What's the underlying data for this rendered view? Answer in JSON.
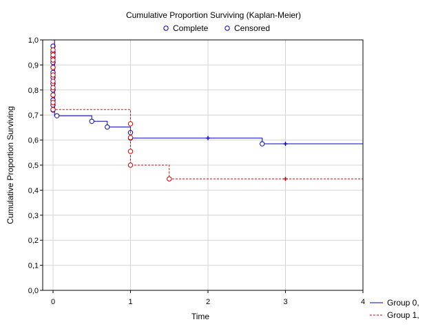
{
  "chart_data": {
    "type": "line",
    "title": "Cumulative Proportion Surviving (Kaplan-Meier)",
    "xlabel": "Time",
    "ylabel": "Cumulative Proportion Surviving",
    "xlim": [
      0,
      4
    ],
    "ylim": [
      0,
      1
    ],
    "x_ticks": [
      "0",
      "1",
      "2",
      "3",
      "4"
    ],
    "y_ticks": [
      "0,0",
      "0,1",
      "0,2",
      "0,3",
      "0,4",
      "0,5",
      "0,6",
      "0,7",
      "0,8",
      "0,9",
      "1,0"
    ],
    "grid": true,
    "marker_legend": [
      {
        "label": "Complete",
        "marker": "circle"
      },
      {
        "label": "Censored",
        "marker": "plus"
      }
    ],
    "legend_position": "bottom-right",
    "series": [
      {
        "name": "Group 0,",
        "color": "#0000c0",
        "style": "solid",
        "steps": [
          [
            0,
            1.0
          ],
          [
            0.02,
            0.697
          ],
          [
            0.5,
            0.675
          ],
          [
            0.7,
            0.652
          ],
          [
            1.0,
            0.608
          ],
          [
            2.7,
            0.585
          ],
          [
            4.0,
            0.585
          ]
        ],
        "complete": [
          [
            0.0,
            0.975
          ],
          [
            0.0,
            0.95
          ],
          [
            0.0,
            0.93
          ],
          [
            0.0,
            0.91
          ],
          [
            0.0,
            0.89
          ],
          [
            0.0,
            0.87
          ],
          [
            0.0,
            0.85
          ],
          [
            0.0,
            0.825
          ],
          [
            0.0,
            0.8
          ],
          [
            0.0,
            0.78
          ],
          [
            0.0,
            0.76
          ],
          [
            0.0,
            0.74
          ],
          [
            0.0,
            0.72
          ],
          [
            0.05,
            0.697
          ],
          [
            0.5,
            0.675
          ],
          [
            0.7,
            0.652
          ],
          [
            1.0,
            0.63
          ],
          [
            1.0,
            0.608
          ],
          [
            2.7,
            0.585
          ]
        ],
        "censored": [
          [
            2.0,
            0.608
          ],
          [
            3.0,
            0.585
          ]
        ]
      },
      {
        "name": "Group 1,",
        "color": "#d00000",
        "style": "dashed",
        "steps": [
          [
            0,
            1.0
          ],
          [
            0.02,
            0.722
          ],
          [
            1.0,
            0.5
          ],
          [
            1.5,
            0.445
          ],
          [
            4.0,
            0.445
          ]
        ],
        "complete": [
          [
            0.0,
            0.96
          ],
          [
            0.0,
            0.94
          ],
          [
            0.0,
            0.92
          ],
          [
            0.0,
            0.89
          ],
          [
            0.0,
            0.86
          ],
          [
            0.0,
            0.835
          ],
          [
            0.0,
            0.81
          ],
          [
            0.0,
            0.78
          ],
          [
            0.0,
            0.75
          ],
          [
            0.0,
            0.722
          ],
          [
            1.0,
            0.665
          ],
          [
            1.0,
            0.61
          ],
          [
            1.0,
            0.555
          ],
          [
            1.0,
            0.5
          ],
          [
            1.5,
            0.445
          ]
        ],
        "censored": [
          [
            3.0,
            0.445
          ]
        ]
      }
    ]
  }
}
